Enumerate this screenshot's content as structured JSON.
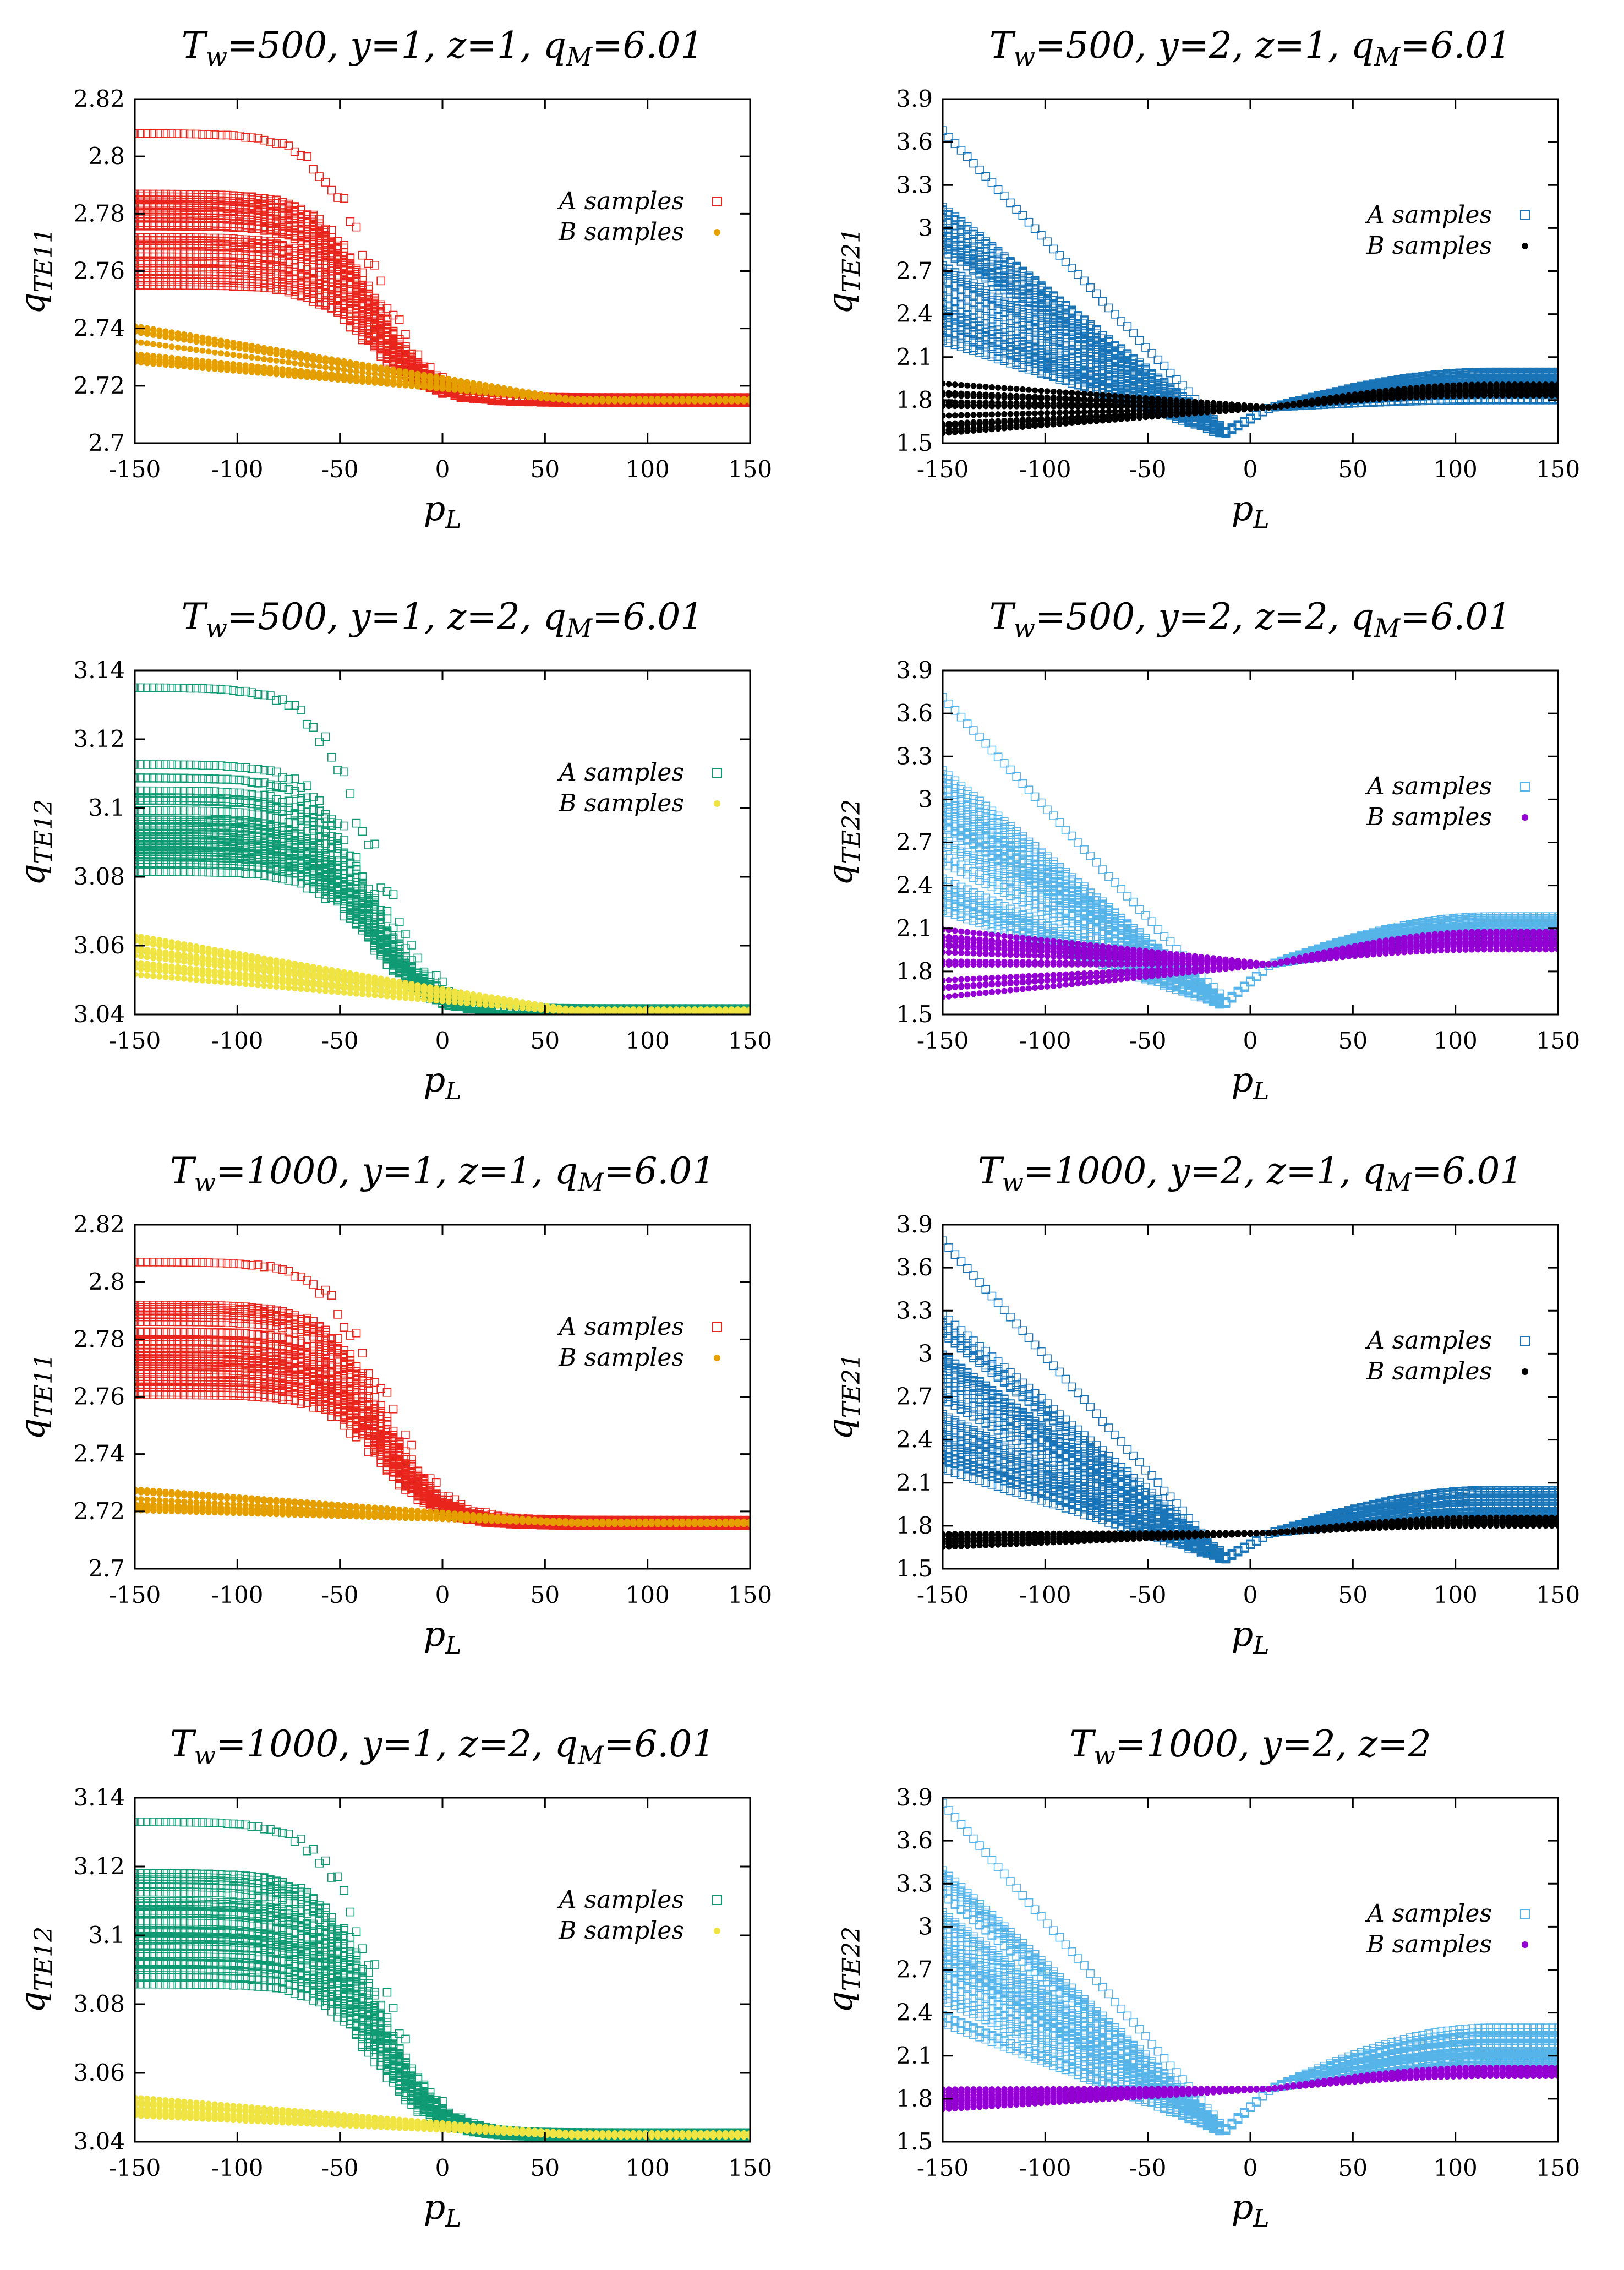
{
  "colors": {
    "red": "#e8251c",
    "green": "#0f9a73",
    "blue": "#1a75b8",
    "lightblue": "#56b4e9",
    "orange": "#e69f00",
    "yellow": "#f0e442",
    "black": "#000000",
    "purple": "#9400d3"
  },
  "legend": {
    "a_label": "A samples",
    "b_label": "B samples"
  },
  "chart_data": [
    {
      "type": "scatter",
      "title": {
        "main": "T",
        "sub": "w",
        "rest": "=500, y=1, z=1, q",
        "sub2": "M",
        "rest2": "=6.01"
      },
      "xlabel": {
        "main": "p",
        "sub": "L"
      },
      "ylabel": {
        "main": "q",
        "sub": "TE11"
      },
      "xlim": [
        -150,
        150
      ],
      "ylim": [
        2.7,
        2.82
      ],
      "xticks": [
        "-150",
        "-100",
        "-50",
        "0",
        "50",
        "100",
        "150"
      ],
      "yticks": [
        "2.7",
        "2.72",
        "2.74",
        "2.76",
        "2.78",
        "2.8",
        "2.82"
      ],
      "series": [
        {
          "name": "A samples",
          "marker": "square",
          "color": "red",
          "x_range": [
            -150,
            150
          ],
          "left_range": [
            2.755,
            2.787
          ],
          "left_outlier": 2.808,
          "right_value": 2.715,
          "right_spread": 0.002,
          "converge_x": 0,
          "fall_center": -35
        },
        {
          "name": "B samples",
          "marker": "dot",
          "color": "orange",
          "x_range": [
            -150,
            150
          ],
          "left_range": [
            2.724,
            2.741
          ],
          "right_value": 2.715,
          "right_spread": 0.001
        }
      ]
    },
    {
      "type": "scatter",
      "title": {
        "main": "T",
        "sub": "w",
        "rest": "=500, y=2, z=1, q",
        "sub2": "M",
        "rest2": "=6.01"
      },
      "xlabel": {
        "main": "p",
        "sub": "L"
      },
      "ylabel": {
        "main": "q",
        "sub": "TE21"
      },
      "xlim": [
        -150,
        150
      ],
      "ylim": [
        1.5,
        3.9
      ],
      "xticks": [
        "-150",
        "-100",
        "-50",
        "0",
        "50",
        "100",
        "150"
      ],
      "yticks": [
        "1.5",
        "1.8",
        "2.1",
        "2.4",
        "2.7",
        "3",
        "3.3",
        "3.6",
        "3.9"
      ],
      "series": [
        {
          "name": "A samples",
          "marker": "square",
          "color": "blue",
          "x_range": [
            -150,
            150
          ],
          "left_range": [
            2.2,
            3.2
          ],
          "left_outlier": 3.68,
          "dip": 1.55,
          "cross": [
            10,
            1.75
          ],
          "right_range": [
            1.8,
            2.0
          ]
        },
        {
          "name": "B samples",
          "marker": "dot",
          "color": "black",
          "x_range": [
            -150,
            150
          ],
          "left_range": [
            1.55,
            2.02
          ],
          "cross": [
            10,
            1.75
          ],
          "right_range": [
            1.83,
            1.92
          ]
        }
      ]
    },
    {
      "type": "scatter",
      "title": {
        "main": "T",
        "sub": "w",
        "rest": "=500, y=1, z=2, q",
        "sub2": "M",
        "rest2": "=6.01"
      },
      "xlabel": {
        "main": "p",
        "sub": "L"
      },
      "ylabel": {
        "main": "q",
        "sub": "TE12"
      },
      "xlim": [
        -150,
        150
      ],
      "ylim": [
        3.04,
        3.14
      ],
      "xticks": [
        "-150",
        "-100",
        "-50",
        "0",
        "50",
        "100",
        "150"
      ],
      "yticks": [
        "3.04",
        "3.06",
        "3.08",
        "3.1",
        "3.12",
        "3.14"
      ],
      "series": [
        {
          "name": "A samples",
          "marker": "square",
          "color": "green",
          "x_range": [
            -150,
            150
          ],
          "left_range": [
            3.08,
            3.113
          ],
          "left_outlier": 3.135,
          "right_value": 3.041,
          "right_spread": 0.0015,
          "converge_x": 0,
          "fall_center": -35
        },
        {
          "name": "B samples",
          "marker": "dot",
          "color": "yellow",
          "x_range": [
            -150,
            150
          ],
          "left_range": [
            3.05,
            3.066
          ],
          "right_value": 3.041,
          "right_spread": 0.001
        }
      ]
    },
    {
      "type": "scatter",
      "title": {
        "main": "T",
        "sub": "w",
        "rest": "=500, y=2, z=2, q",
        "sub2": "M",
        "rest2": "=6.01"
      },
      "xlabel": {
        "main": "p",
        "sub": "L"
      },
      "ylabel": {
        "main": "q",
        "sub": "TE22"
      },
      "xlim": [
        -150,
        150
      ],
      "ylim": [
        1.5,
        3.9
      ],
      "xticks": [
        "-150",
        "-100",
        "-50",
        "0",
        "50",
        "100",
        "150"
      ],
      "yticks": [
        "1.5",
        "1.8",
        "2.1",
        "2.4",
        "2.7",
        "3",
        "3.3",
        "3.6",
        "3.9"
      ],
      "series": [
        {
          "name": "A samples",
          "marker": "square",
          "color": "lightblue",
          "x_range": [
            -150,
            150
          ],
          "left_range": [
            2.2,
            3.2
          ],
          "left_outlier": 3.7,
          "dip": 1.55,
          "cross": [
            10,
            1.85
          ],
          "right_range": [
            2.0,
            2.2
          ]
        },
        {
          "name": "B samples",
          "marker": "dot",
          "color": "purple",
          "x_range": [
            -150,
            150
          ],
          "left_range": [
            1.6,
            2.13
          ],
          "cross": [
            10,
            1.85
          ],
          "right_range": [
            1.95,
            2.1
          ]
        }
      ]
    },
    {
      "type": "scatter",
      "title": {
        "main": "T",
        "sub": "w",
        "rest": "=1000, y=1, z=1, q",
        "sub2": "M",
        "rest2": "=6.01"
      },
      "xlabel": {
        "main": "p",
        "sub": "L"
      },
      "ylabel": {
        "main": "q",
        "sub": "TE11"
      },
      "xlim": [
        -150,
        150
      ],
      "ylim": [
        2.7,
        2.82
      ],
      "xticks": [
        "-150",
        "-100",
        "-50",
        "0",
        "50",
        "100",
        "150"
      ],
      "yticks": [
        "2.7",
        "2.72",
        "2.74",
        "2.76",
        "2.78",
        "2.8",
        "2.82"
      ],
      "series": [
        {
          "name": "A samples",
          "marker": "square",
          "color": "red",
          "x_range": [
            -150,
            150
          ],
          "left_range": [
            2.76,
            2.795
          ],
          "left_outlier": 2.807,
          "right_value": 2.716,
          "right_spread": 0.002,
          "converge_x": 10,
          "fall_center": -30
        },
        {
          "name": "B samples",
          "marker": "dot",
          "color": "orange",
          "x_range": [
            -150,
            150
          ],
          "left_range": [
            2.72,
            2.728
          ],
          "right_value": 2.716,
          "right_spread": 0.001
        }
      ]
    },
    {
      "type": "scatter",
      "title": {
        "main": "T",
        "sub": "w",
        "rest": "=1000, y=2, z=1, q",
        "sub2": "M",
        "rest2": "=6.01"
      },
      "xlabel": {
        "main": "p",
        "sub": "L"
      },
      "ylabel": {
        "main": "q",
        "sub": "TE21"
      },
      "xlim": [
        -150,
        150
      ],
      "ylim": [
        1.5,
        3.9
      ],
      "xticks": [
        "-150",
        "-100",
        "-50",
        "0",
        "50",
        "100",
        "150"
      ],
      "yticks": [
        "1.5",
        "1.8",
        "2.1",
        "2.4",
        "2.7",
        "3",
        "3.3",
        "3.6",
        "3.9"
      ],
      "series": [
        {
          "name": "A samples",
          "marker": "square",
          "color": "blue",
          "x_range": [
            -150,
            150
          ],
          "left_range": [
            2.2,
            3.3
          ],
          "left_outlier": 3.8,
          "dip": 1.55,
          "cross": [
            10,
            1.75
          ],
          "right_range": [
            1.85,
            2.05
          ]
        },
        {
          "name": "B samples",
          "marker": "dot",
          "color": "black",
          "x_range": [
            -150,
            150
          ],
          "left_range": [
            1.65,
            1.76
          ],
          "cross": [
            10,
            1.75
          ],
          "right_range": [
            1.8,
            1.86
          ]
        }
      ]
    },
    {
      "type": "scatter",
      "title": {
        "main": "T",
        "sub": "w",
        "rest": "=1000, y=1, z=2, q",
        "sub2": "M",
        "rest2": "=6.01"
      },
      "xlabel": {
        "main": "p",
        "sub": "L"
      },
      "ylabel": {
        "main": "q",
        "sub": "TE12"
      },
      "xlim": [
        -150,
        150
      ],
      "ylim": [
        3.04,
        3.14
      ],
      "xticks": [
        "-150",
        "-100",
        "-50",
        "0",
        "50",
        "100",
        "150"
      ],
      "yticks": [
        "3.04",
        "3.06",
        "3.08",
        "3.1",
        "3.12",
        "3.14"
      ],
      "series": [
        {
          "name": "A samples",
          "marker": "square",
          "color": "green",
          "x_range": [
            -150,
            150
          ],
          "left_range": [
            3.085,
            3.12
          ],
          "left_outlier": 3.133,
          "right_value": 3.042,
          "right_spread": 0.0015,
          "converge_x": 5,
          "fall_center": -32
        },
        {
          "name": "B samples",
          "marker": "dot",
          "color": "yellow",
          "x_range": [
            -150,
            150
          ],
          "left_range": [
            3.045,
            3.053
          ],
          "right_value": 3.042,
          "right_spread": 0.001
        }
      ]
    },
    {
      "type": "scatter",
      "title": {
        "main": "T",
        "sub": "w",
        "rest": "=1000, y=2, z=2",
        "sub2": "",
        "rest2": ""
      },
      "xlabel": {
        "main": "p",
        "sub": "L"
      },
      "ylabel": {
        "main": "q",
        "sub": "TE22"
      },
      "xlim": [
        -150,
        150
      ],
      "ylim": [
        1.5,
        3.9
      ],
      "xticks": [
        "-150",
        "-100",
        "-50",
        "0",
        "50",
        "100",
        "150"
      ],
      "yticks": [
        "1.5",
        "1.8",
        "2.1",
        "2.4",
        "2.7",
        "3",
        "3.3",
        "3.6",
        "3.9"
      ],
      "series": [
        {
          "name": "A samples",
          "marker": "square",
          "color": "lightblue",
          "x_range": [
            -150,
            150
          ],
          "left_range": [
            2.3,
            3.4
          ],
          "left_outlier": 3.85,
          "dip": 1.55,
          "cross": [
            10,
            1.87
          ],
          "right_range": [
            2.05,
            2.3
          ]
        },
        {
          "name": "B samples",
          "marker": "dot",
          "color": "purple",
          "x_range": [
            -150,
            150
          ],
          "left_range": [
            1.72,
            1.87
          ],
          "cross": [
            10,
            1.87
          ],
          "right_range": [
            1.95,
            2.02
          ]
        }
      ]
    }
  ]
}
